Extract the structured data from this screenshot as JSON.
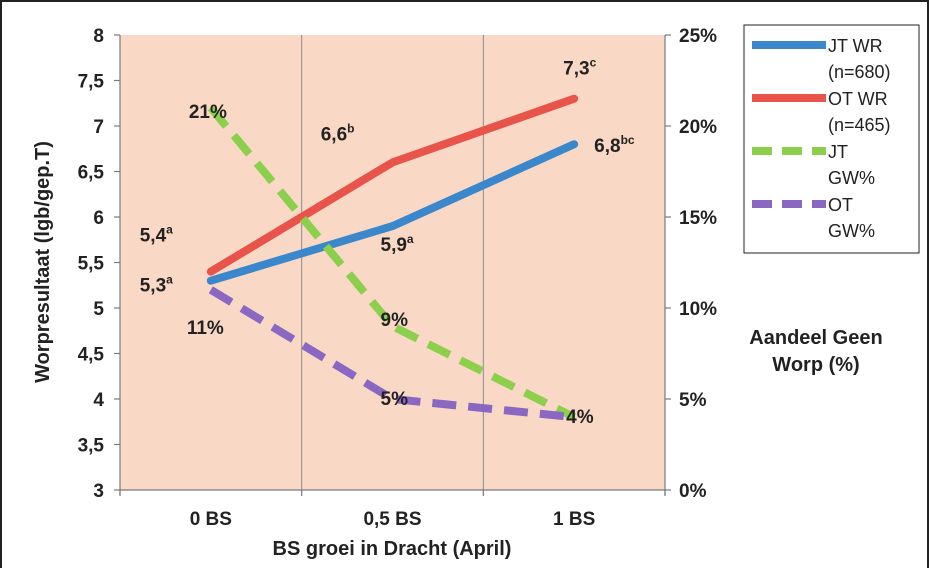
{
  "chart_data": {
    "type": "line",
    "categories": [
      "0 BS",
      "0,5 BS",
      "1 BS"
    ],
    "xlabel": "BS groei in Dracht (April)",
    "ylabel": "Worpresultaat (lgb/gep.T)",
    "ylim": [
      3,
      8
    ],
    "yticks": [
      "3",
      "3,5",
      "4",
      "4,5",
      "5",
      "5,5",
      "6",
      "6,5",
      "7",
      "7,5",
      "8"
    ],
    "y2label_lines": [
      "Aandeel Geen",
      "Worp (%)"
    ],
    "y2lim": [
      0,
      25
    ],
    "y2ticks": [
      "0%",
      "5%",
      "10%",
      "15%",
      "20%",
      "25%"
    ],
    "plot_background": "#f9d9c6",
    "grid": "vertical",
    "legend_position": "right",
    "series": [
      {
        "name_lines": [
          "JT  WR",
          "(n=680)"
        ],
        "axis": "left",
        "style": "solid",
        "color": "#3b87cc",
        "values": [
          5.3,
          5.9,
          6.8
        ],
        "labels": [
          [
            "5,3",
            "a"
          ],
          [
            "5,9",
            "a"
          ],
          [
            "6,8",
            "bc"
          ]
        ]
      },
      {
        "name_lines": [
          "OT WR",
          "(n=465)"
        ],
        "axis": "left",
        "style": "solid",
        "color": "#e8534a",
        "values": [
          5.4,
          6.6,
          7.3
        ],
        "labels": [
          [
            "5,4",
            "a"
          ],
          [
            "6,6",
            "b"
          ],
          [
            "7,3",
            "c"
          ]
        ]
      },
      {
        "name_lines": [
          "JT",
          "GW%"
        ],
        "axis": "right",
        "style": "dashed",
        "color": "#8ccf4d",
        "values": [
          21,
          9,
          4
        ],
        "labels": [
          [
            "21%",
            ""
          ],
          [
            "9%",
            ""
          ],
          [
            "4%",
            ""
          ]
        ]
      },
      {
        "name_lines": [
          "OT",
          "GW%"
        ],
        "axis": "right",
        "style": "dashed",
        "color": "#8a68c2",
        "values": [
          11,
          5,
          4
        ],
        "labels": [
          [
            "11%",
            ""
          ],
          [
            "5%",
            ""
          ],
          [
            "",
            ""
          ]
        ]
      }
    ]
  }
}
